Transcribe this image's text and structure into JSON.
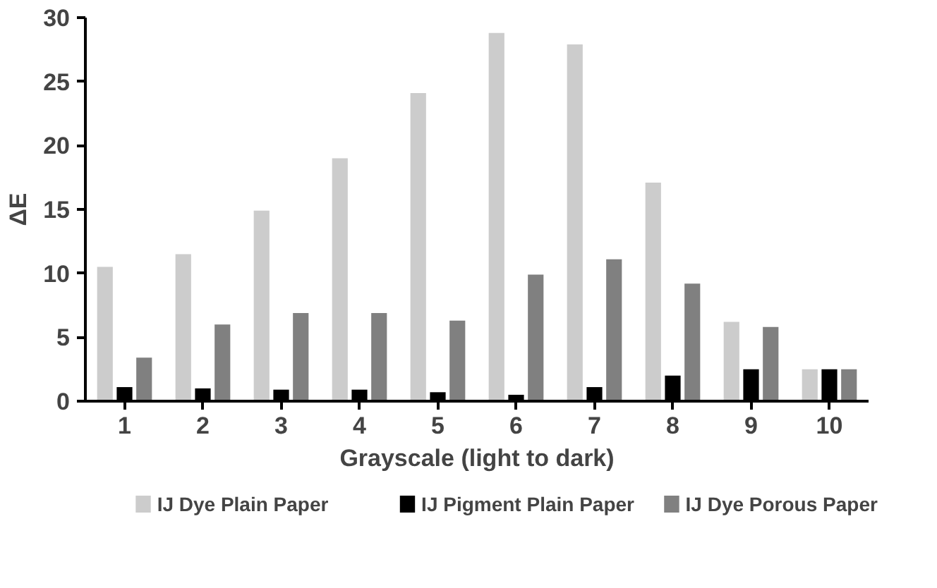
{
  "chart_data": {
    "type": "bar",
    "xlabel": "Grayscale (light to dark)",
    "ylabel": "ΔE",
    "categories": [
      "1",
      "2",
      "3",
      "4",
      "5",
      "6",
      "7",
      "8",
      "9",
      "10"
    ],
    "series": [
      {
        "name": "IJ Dye Plain Paper",
        "color": "#cccccc",
        "values": [
          10.5,
          11.5,
          14.9,
          19.0,
          24.1,
          28.8,
          27.9,
          17.1,
          6.2,
          2.5
        ]
      },
      {
        "name": "IJ Pigment Plain Paper",
        "color": "#000000",
        "values": [
          1.1,
          1.0,
          0.9,
          0.9,
          0.7,
          0.5,
          1.1,
          2.0,
          2.5,
          2.5
        ]
      },
      {
        "name": "IJ Dye Porous Paper",
        "color": "#808080",
        "values": [
          3.4,
          6.0,
          6.9,
          6.9,
          6.3,
          9.9,
          11.1,
          9.2,
          5.8,
          2.5
        ]
      }
    ],
    "ylim": [
      0,
      30
    ],
    "yticks": [
      0,
      5,
      10,
      15,
      20,
      25,
      30
    ],
    "grid": false,
    "legend": "bottom"
  }
}
